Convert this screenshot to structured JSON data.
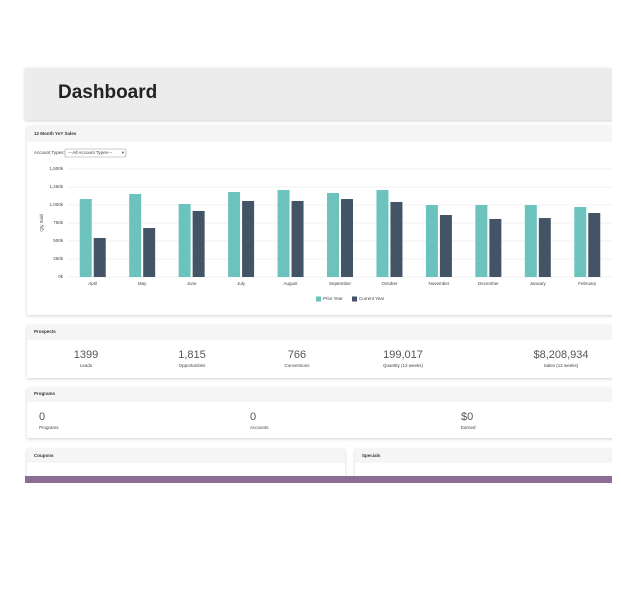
{
  "header": {
    "title": "Dashboard"
  },
  "sales_panel": {
    "title": "12 Month YoY Sales",
    "filter_label": "Account Types:",
    "filter_value": "---All Account Types---",
    "chart": {
      "type": "bar",
      "y_label": "Qty Sold",
      "categories": [
        "April",
        "May",
        "June",
        "July",
        "August",
        "September",
        "October",
        "November",
        "December",
        "January",
        "February"
      ],
      "series": [
        {
          "name": "Prior Year",
          "color": "#6cc3bd",
          "values": [
            1083000,
            1153000,
            1014000,
            1180000,
            1208000,
            1167000,
            1208000,
            1000000,
            1000000,
            1000000,
            972000
          ]
        },
        {
          "name": "Current Year",
          "color": "#435466",
          "values": [
            542000,
            680000,
            917000,
            1056000,
            1056000,
            1083000,
            1042000,
            861000,
            806000,
            819000,
            889000
          ]
        }
      ],
      "ylim": [
        0,
        1500000
      ],
      "yticks": [
        {
          "value": 0,
          "label": "0k"
        },
        {
          "value": 250000,
          "label": "250k"
        },
        {
          "value": 500000,
          "label": "500k"
        },
        {
          "value": 750000,
          "label": "750k"
        },
        {
          "value": 1000000,
          "label": "1,000k"
        },
        {
          "value": 1250000,
          "label": "1,250k"
        },
        {
          "value": 1500000,
          "label": "1,500k"
        }
      ],
      "grid": true,
      "legend": "bottom"
    }
  },
  "prospects": {
    "title": "Prospects",
    "stats": [
      {
        "value": "1399",
        "label": "Leads"
      },
      {
        "value": "1,815",
        "label": "Opportunities"
      },
      {
        "value": "766",
        "label": "Conversions"
      },
      {
        "value": "199,017",
        "label": "Quantity (12 weeks)"
      },
      {
        "value": "$8,208,934",
        "label": "Sales (12 weeks)"
      }
    ]
  },
  "programs": {
    "title": "Programs",
    "stats": [
      {
        "value": "0",
        "label": "Programs"
      },
      {
        "value": "0",
        "label": "Accounts"
      },
      {
        "value": "$0",
        "label": "Earned"
      }
    ]
  },
  "coupons": {
    "title": "Coupons"
  },
  "specials": {
    "title": "Specials"
  }
}
